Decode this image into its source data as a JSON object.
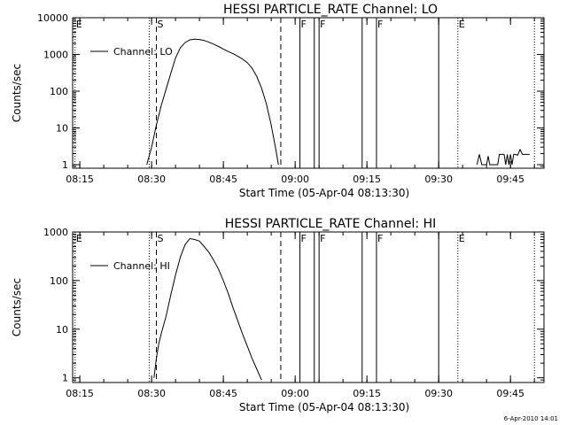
{
  "footer_date": "6-Apr-2010 14:01",
  "chart_data": [
    {
      "type": "line",
      "title": "HESSI PARTICLE_RATE Channel: LO",
      "xlabel": "Start Time (05-Apr-04 08:13:30)",
      "ylabel": "Counts/sec",
      "yscale": "log",
      "ylim": [
        0.8,
        10000
      ],
      "xlim": [
        "08:13:30",
        "09:52:00"
      ],
      "x_ticks": [
        "08:15",
        "08:30",
        "08:45",
        "09:00",
        "09:15",
        "09:30",
        "09:45"
      ],
      "y_ticks": [
        "1",
        "10",
        "100",
        "1000",
        "10000"
      ],
      "legend": {
        "label": "Channel: LO",
        "position": "top-left"
      },
      "series": [
        {
          "name": "Channel: LO",
          "x": [
            "08:29:00",
            "08:30:00",
            "08:31:00",
            "08:32:00",
            "08:33:00",
            "08:34:00",
            "08:35:00",
            "08:36:00",
            "08:37:00",
            "08:38:00",
            "08:39:00",
            "08:40:00",
            "08:41:00",
            "08:42:00",
            "08:43:00",
            "08:44:00",
            "08:45:00",
            "08:46:00",
            "08:47:00",
            "08:48:00",
            "08:49:00",
            "08:50:00",
            "08:51:00",
            "08:52:00",
            "08:53:00",
            "08:54:00",
            "08:55:00",
            "08:56:00",
            "08:56:30"
          ],
          "y": [
            1,
            3,
            12,
            40,
            110,
            300,
            800,
            1500,
            2100,
            2500,
            2600,
            2550,
            2400,
            2150,
            1900,
            1650,
            1400,
            1200,
            1050,
            900,
            750,
            600,
            420,
            250,
            120,
            45,
            12,
            2.5,
            1
          ]
        },
        {
          "name": "",
          "x": [
            "09:38:00",
            "09:38:30",
            "09:39:00",
            "09:40:00",
            "09:40:20",
            "09:40:40",
            "09:42:20",
            "09:42:40",
            "09:43:40",
            "09:44:00",
            "09:44:20",
            "09:44:40",
            "09:45:00",
            "09:45:20",
            "09:45:40",
            "09:46:00",
            "09:46:30",
            "09:47:00",
            "09:47:30",
            "09:48:00",
            "09:48:30",
            "09:49:00"
          ],
          "y": [
            1,
            1.9,
            1,
            1,
            1.7,
            1,
            1,
            1.9,
            1.9,
            1,
            1.9,
            1,
            1.9,
            1,
            1.9,
            1.9,
            1.8,
            2.6,
            1.9,
            1.9,
            1.9,
            1.9
          ]
        }
      ],
      "markers": [
        {
          "time": "08:14:00",
          "label": "E",
          "style": "dotted"
        },
        {
          "time": "08:29:30",
          "label": "",
          "style": "dotted"
        },
        {
          "time": "08:31:00",
          "label": "S",
          "style": "dashed"
        },
        {
          "time": "08:57:00",
          "label": "",
          "style": "dashed"
        },
        {
          "time": "09:01:00",
          "label": "F",
          "style": "solid"
        },
        {
          "time": "09:04:00",
          "label": "",
          "style": "solid"
        },
        {
          "time": "09:05:00",
          "label": "F",
          "style": "solid"
        },
        {
          "time": "09:14:00",
          "label": "",
          "style": "solid"
        },
        {
          "time": "09:17:00",
          "label": "F",
          "style": "solid"
        },
        {
          "time": "09:30:00",
          "label": "",
          "style": "solid"
        },
        {
          "time": "09:34:00",
          "label": "E",
          "style": "dotted"
        },
        {
          "time": "09:50:00",
          "label": "",
          "style": "dotted"
        }
      ]
    },
    {
      "type": "line",
      "title": "HESSI PARTICLE_RATE Channel: HI",
      "xlabel": "Start Time (05-Apr-04 08:13:30)",
      "ylabel": "Counts/sec",
      "yscale": "log",
      "ylim": [
        0.8,
        1000
      ],
      "xlim": [
        "08:13:30",
        "09:52:00"
      ],
      "x_ticks": [
        "08:15",
        "08:30",
        "08:45",
        "09:00",
        "09:15",
        "09:30",
        "09:45"
      ],
      "y_ticks": [
        "1",
        "10",
        "100",
        "1000"
      ],
      "legend": {
        "label": "Channel: HI",
        "position": "top-left"
      },
      "series": [
        {
          "name": "Channel: HI",
          "x": [
            "08:30:30",
            "08:31:00",
            "08:31:30",
            "08:32:00",
            "08:33:00",
            "08:34:00",
            "08:35:00",
            "08:36:00",
            "08:37:00",
            "08:38:00",
            "08:39:00",
            "08:40:00",
            "08:41:00",
            "08:42:00",
            "08:43:00",
            "08:44:00",
            "08:45:00",
            "08:46:00",
            "08:47:00",
            "08:48:00",
            "08:49:00",
            "08:50:00",
            "08:51:00",
            "08:52:00",
            "08:53:00"
          ],
          "y": [
            1,
            2.5,
            5,
            8,
            18,
            50,
            130,
            300,
            550,
            730,
            700,
            650,
            500,
            380,
            260,
            170,
            100,
            55,
            28,
            15,
            8,
            4.5,
            2.5,
            1.5,
            0.9
          ]
        }
      ],
      "markers": [
        {
          "time": "08:14:00",
          "label": "E",
          "style": "dotted"
        },
        {
          "time": "08:29:30",
          "label": "",
          "style": "dotted"
        },
        {
          "time": "08:31:00",
          "label": "S",
          "style": "dashed"
        },
        {
          "time": "08:57:00",
          "label": "",
          "style": "dashed"
        },
        {
          "time": "09:01:00",
          "label": "F",
          "style": "solid"
        },
        {
          "time": "09:04:00",
          "label": "",
          "style": "solid"
        },
        {
          "time": "09:05:00",
          "label": "F",
          "style": "solid"
        },
        {
          "time": "09:14:00",
          "label": "",
          "style": "solid"
        },
        {
          "time": "09:17:00",
          "label": "F",
          "style": "solid"
        },
        {
          "time": "09:30:00",
          "label": "",
          "style": "solid"
        },
        {
          "time": "09:34:00",
          "label": "E",
          "style": "dotted"
        },
        {
          "time": "09:50:00",
          "label": "",
          "style": "dotted"
        }
      ]
    }
  ]
}
